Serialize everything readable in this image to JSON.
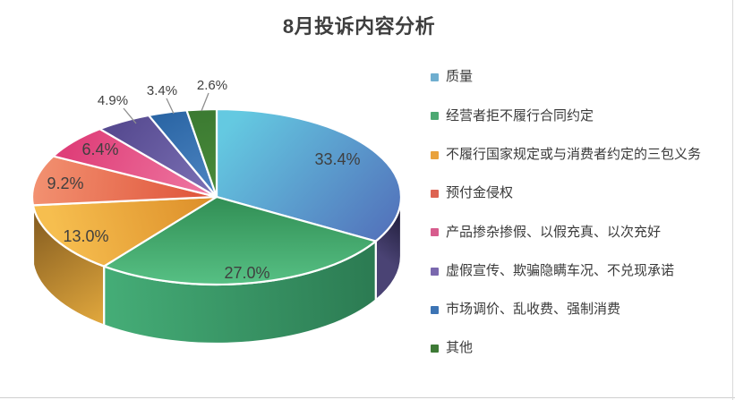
{
  "chart_data": {
    "type": "pie",
    "title": "8月投诉内容分析",
    "projection": "3d",
    "start_angle_deg": 0,
    "direction": "clockwise",
    "legend_position": "right",
    "value_format": "percent",
    "slices": [
      {
        "label": "质量",
        "value": 33.4,
        "display": "33.4%",
        "colors": {
          "legend": "#6FAECF",
          "top": [
            "#64C9E1",
            "#5375BC"
          ],
          "rim": [
            "#4A4374",
            "#211E3C"
          ]
        }
      },
      {
        "label": "经营者拒不履行合同约定",
        "value": 27.0,
        "display": "27.0%",
        "colors": {
          "legend": "#4CA972",
          "top": [
            "#339157",
            "#58C286"
          ],
          "rim": [
            "#45AD77",
            "#2A7850"
          ]
        }
      },
      {
        "label": "不履行国家规定或与消费者约定的三包义务",
        "value": 13.0,
        "display": "13.0%",
        "colors": {
          "legend": "#E9A23D",
          "top": [
            "#F6BE4F",
            "#DC8D28"
          ],
          "rim": [
            "#8A6122",
            "#DEA53C"
          ]
        }
      },
      {
        "label": "预付金侵权",
        "value": 9.2,
        "display": "9.2%",
        "colors": {
          "legend": "#DD6352",
          "top": [
            "#F29070",
            "#DE5137"
          ],
          "rim": [
            "#C95E42",
            "#A8432E"
          ]
        }
      },
      {
        "label": "产品掺杂掺假、以假充真、以次充好",
        "value": 6.4,
        "display": "6.4%",
        "colors": {
          "legend": "#D75C8D",
          "top": [
            "#DF3F79",
            "#EF7AA3"
          ],
          "rim": null
        }
      },
      {
        "label": "虚假宣传、欺骗隐瞒车况、不兑现承诺",
        "value": 4.9,
        "display": "4.9%",
        "colors": {
          "legend": "#7A68AE",
          "top": [
            "#574B91",
            "#7D72B6"
          ],
          "rim": null
        }
      },
      {
        "label": "市场调价、乱收费、强制消费",
        "value": 3.4,
        "display": "3.4%",
        "colors": {
          "legend": "#3D74B4",
          "top": [
            "#2B66A5",
            "#4F86C3"
          ],
          "rim": null
        }
      },
      {
        "label": "其他",
        "value": 2.6,
        "display": "2.6%",
        "colors": {
          "legend": "#3E7A36",
          "top": [
            "#3B7A31",
            "#4A8B3B"
          ],
          "rim": null
        }
      }
    ]
  }
}
